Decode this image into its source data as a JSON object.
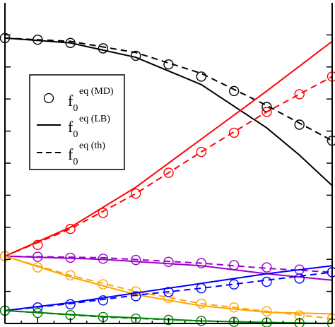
{
  "chart_data": {
    "type": "line",
    "title": "",
    "xlabel": "",
    "ylabel": "",
    "xlim": [
      0,
      10
    ],
    "ylim": [
      0,
      10
    ],
    "legend": {
      "placement": "upper-left",
      "entries": [
        {
          "marker": "circle",
          "base": "f",
          "sub": "0",
          "sup": "eq (MD)"
        },
        {
          "marker": "solid",
          "base": "f",
          "sub": "0",
          "sup": "eq (LB)"
        },
        {
          "marker": "dashed",
          "base": "f",
          "sub": "0",
          "sup": "eq (th)"
        }
      ]
    },
    "series": [
      {
        "color": "#000000",
        "lb": [
          [
            0,
            8.9
          ],
          [
            2,
            8.75
          ],
          [
            4,
            8.3
          ],
          [
            6,
            7.45
          ],
          [
            8,
            6.1
          ],
          [
            9,
            5.25
          ],
          [
            10,
            4.3
          ]
        ],
        "th": [
          [
            0,
            8.9
          ],
          [
            2,
            8.8
          ],
          [
            4,
            8.45
          ],
          [
            6,
            7.8
          ],
          [
            8,
            6.8
          ],
          [
            10,
            5.7
          ]
        ],
        "md_x": [
          0,
          1,
          2,
          3,
          4,
          5,
          6,
          7,
          8,
          9,
          10
        ],
        "md_y": [
          8.9,
          8.85,
          8.75,
          8.58,
          8.35,
          8.08,
          7.7,
          7.25,
          6.75,
          6.2,
          5.7
        ]
      },
      {
        "color": "#ff0000",
        "lb": [
          [
            0,
            2.1
          ],
          [
            2,
            3.0
          ],
          [
            4,
            4.25
          ],
          [
            6,
            5.75
          ],
          [
            8,
            7.25
          ],
          [
            10,
            8.8
          ]
        ],
        "th": [
          [
            0,
            2.1
          ],
          [
            2,
            2.95
          ],
          [
            4,
            4.05
          ],
          [
            6,
            5.35
          ],
          [
            8,
            6.6
          ],
          [
            10,
            7.7
          ]
        ],
        "md_x": [
          0,
          1,
          2,
          3,
          4,
          5,
          6,
          7,
          8,
          9,
          10
        ],
        "md_y": [
          2.1,
          2.45,
          2.95,
          3.45,
          4.05,
          4.7,
          5.35,
          5.95,
          6.6,
          7.15,
          7.7
        ]
      },
      {
        "color": "#9900cc",
        "lb": [
          [
            0,
            2.1
          ],
          [
            3,
            2.0
          ],
          [
            6,
            1.8
          ],
          [
            8,
            1.55
          ],
          [
            10,
            1.35
          ]
        ],
        "th": [
          [
            0,
            2.1
          ],
          [
            3,
            2.05
          ],
          [
            6,
            1.88
          ],
          [
            8,
            1.72
          ],
          [
            10,
            1.6
          ]
        ],
        "md_x": [
          0,
          1,
          2,
          3,
          4,
          5,
          6,
          7,
          8,
          9,
          10
        ],
        "md_y": [
          2.1,
          2.08,
          2.05,
          2.02,
          1.98,
          1.92,
          1.88,
          1.82,
          1.75,
          1.68,
          1.6
        ]
      },
      {
        "color": "#ffa500",
        "lb": [
          [
            0,
            2.1
          ],
          [
            2,
            1.45
          ],
          [
            4,
            0.9
          ],
          [
            6,
            0.55
          ],
          [
            8,
            0.35
          ],
          [
            10,
            0.3
          ]
        ],
        "th": [
          [
            0,
            2.1
          ],
          [
            2,
            1.5
          ],
          [
            4,
            1.0
          ],
          [
            6,
            0.62
          ],
          [
            8,
            0.38
          ],
          [
            10,
            0.15
          ]
        ],
        "md_x": [
          0,
          1,
          2,
          3,
          4,
          5,
          6,
          7,
          8,
          9,
          10
        ],
        "md_y": [
          2.1,
          1.75,
          1.5,
          1.22,
          1.0,
          0.8,
          0.62,
          0.5,
          0.38,
          0.25,
          0.15
        ]
      },
      {
        "color": "#0000ff",
        "lb": [
          [
            0,
            0.4
          ],
          [
            2,
            0.65
          ],
          [
            4,
            0.95
          ],
          [
            6,
            1.25
          ],
          [
            8,
            1.55
          ],
          [
            10,
            1.8
          ]
        ],
        "th": [
          [
            0,
            0.4
          ],
          [
            2,
            0.62
          ],
          [
            4,
            0.88
          ],
          [
            6,
            1.1
          ],
          [
            8,
            1.35
          ],
          [
            10,
            1.6
          ]
        ],
        "md_x": [
          0,
          1,
          2,
          3,
          4,
          5,
          6,
          7,
          8,
          9,
          10
        ],
        "md_y": [
          0.4,
          0.5,
          0.6,
          0.72,
          0.85,
          0.98,
          1.1,
          1.22,
          1.3,
          1.4,
          1.6
        ]
      },
      {
        "color": "#008000",
        "lb": [
          [
            0,
            0.4
          ],
          [
            3,
            0.22
          ],
          [
            6,
            0.08
          ],
          [
            8,
            0.03
          ],
          [
            10,
            0.0
          ]
        ],
        "th": [
          [
            0,
            0.4
          ],
          [
            3,
            0.2
          ],
          [
            6,
            0.08
          ],
          [
            8,
            0.03
          ],
          [
            10,
            0.0
          ]
        ],
        "md_x": [
          0,
          1,
          2,
          3,
          4,
          5,
          6,
          7,
          8,
          9,
          10
        ],
        "md_y": [
          0.4,
          0.33,
          0.26,
          0.2,
          0.15,
          0.11,
          0.08,
          0.05,
          0.03,
          0.01,
          0.0
        ]
      }
    ]
  }
}
